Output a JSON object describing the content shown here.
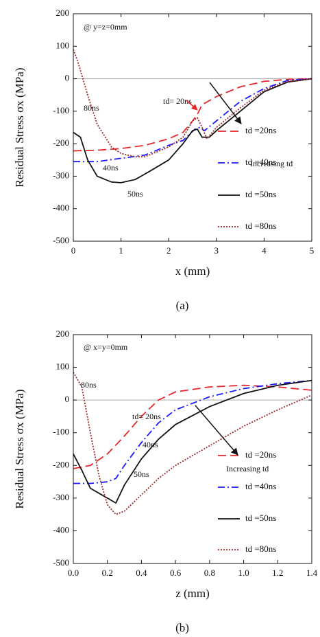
{
  "chart_data": [
    {
      "type": "line",
      "y_label": "Residual Stress σx (MPa)",
      "x_label": "x (mm)",
      "label": "(a)",
      "xlim": [
        0,
        5
      ],
      "xticks": [
        0,
        1,
        2,
        3,
        4,
        5
      ],
      "ylim": [
        -500,
        200
      ],
      "yticks": [
        -500,
        -400,
        -300,
        -200,
        -100,
        0,
        100,
        200
      ],
      "zero_line": true,
      "annotations": [
        "@ y=z=0mm",
        "80ns",
        "40ns",
        "50ns",
        "td= 20ns",
        "Increasing td"
      ],
      "series": [
        {
          "name": "td =20ns",
          "color": "#e8262a",
          "style": "dashed",
          "x": [
            0,
            0.5,
            1,
            1.5,
            2,
            2.3,
            2.5,
            2.6,
            2.7,
            3,
            3.5,
            4,
            4.5,
            5
          ],
          "values": [
            -222,
            -220,
            -215,
            -205,
            -185,
            -165,
            -130,
            -110,
            -80,
            -55,
            -25,
            -8,
            -2,
            0
          ]
        },
        {
          "name": "td =40ns",
          "color": "#1a1aff",
          "style": "dashdot",
          "x": [
            0,
            0.5,
            1,
            1.5,
            2,
            2.3,
            2.55,
            2.65,
            2.75,
            3,
            3.5,
            4,
            4.5,
            5
          ],
          "values": [
            -255,
            -255,
            -245,
            -235,
            -205,
            -190,
            -155,
            -150,
            -160,
            -130,
            -70,
            -30,
            -5,
            0
          ]
        },
        {
          "name": "td =50ns",
          "color": "#111111",
          "style": "solid",
          "x": [
            0,
            0.15,
            0.3,
            0.5,
            0.8,
            1,
            1.3,
            1.6,
            2,
            2.3,
            2.5,
            2.6,
            2.7,
            2.85,
            3,
            3.5,
            4,
            4.5,
            5
          ],
          "values": [
            -165,
            -180,
            -250,
            -300,
            -318,
            -320,
            -310,
            -285,
            -250,
            -200,
            -160,
            -155,
            -180,
            -180,
            -160,
            -100,
            -40,
            -10,
            0
          ]
        },
        {
          "name": "td =80ns",
          "color": "#a0282a",
          "style": "dotted",
          "x": [
            0,
            0.1,
            0.3,
            0.5,
            0.8,
            1,
            1.3,
            1.5,
            2,
            2.3,
            2.5,
            2.6,
            2.7,
            2.8,
            3,
            3.5,
            4,
            4.5,
            5
          ],
          "values": [
            90,
            50,
            -50,
            -140,
            -210,
            -230,
            -240,
            -240,
            -210,
            -180,
            -130,
            -120,
            -150,
            -185,
            -150,
            -90,
            -35,
            -8,
            0
          ]
        }
      ]
    },
    {
      "type": "line",
      "y_label": "Residual Stress σx (MPa)",
      "x_label": "z (mm)",
      "label": "(b)",
      "xlim": [
        0,
        1.4
      ],
      "xticks": [
        {
          "value": 0,
          "label": "0.0"
        },
        0.2,
        0.4,
        0.6,
        0.8,
        {
          "value": 1,
          "label": "1.0"
        },
        1.2,
        1.4
      ],
      "ylim": [
        -500,
        200
      ],
      "yticks": [
        -500,
        -400,
        -300,
        -200,
        -100,
        0,
        100,
        200
      ],
      "zero_line": true,
      "annotations": [
        "@ x=y=0mm",
        "80ns",
        "td= 20ns",
        "40ns",
        "50ns",
        "Increasing td"
      ],
      "series": [
        {
          "name": "td =20ns",
          "color": "#e8262a",
          "style": "dashed",
          "x": [
            0,
            0.1,
            0.2,
            0.3,
            0.4,
            0.5,
            0.6,
            0.8,
            1,
            1.2,
            1.4
          ],
          "values": [
            -210,
            -200,
            -165,
            -110,
            -50,
            0,
            25,
            40,
            45,
            40,
            30
          ]
        },
        {
          "name": "td =40ns",
          "color": "#1a1aff",
          "style": "dashdot",
          "x": [
            0,
            0.1,
            0.2,
            0.25,
            0.3,
            0.4,
            0.5,
            0.6,
            0.8,
            1,
            1.2,
            1.4
          ],
          "values": [
            -255,
            -255,
            -250,
            -240,
            -200,
            -130,
            -70,
            -30,
            10,
            35,
            50,
            60
          ]
        },
        {
          "name": "td =50ns",
          "color": "#111111",
          "style": "solid",
          "x": [
            0,
            0.05,
            0.1,
            0.15,
            0.2,
            0.25,
            0.3,
            0.4,
            0.5,
            0.6,
            0.8,
            1,
            1.2,
            1.4
          ],
          "values": [
            -165,
            -215,
            -270,
            -285,
            -300,
            -315,
            -260,
            -180,
            -120,
            -75,
            -20,
            20,
            45,
            60
          ]
        },
        {
          "name": "td =80ns",
          "color": "#a0282a",
          "style": "dotted",
          "x": [
            0,
            0.05,
            0.1,
            0.15,
            0.2,
            0.25,
            0.3,
            0.4,
            0.5,
            0.6,
            0.8,
            1,
            1.2,
            1.4
          ],
          "values": [
            85,
            40,
            -100,
            -230,
            -320,
            -350,
            -340,
            -290,
            -240,
            -200,
            -140,
            -80,
            -30,
            15
          ]
        }
      ]
    }
  ]
}
